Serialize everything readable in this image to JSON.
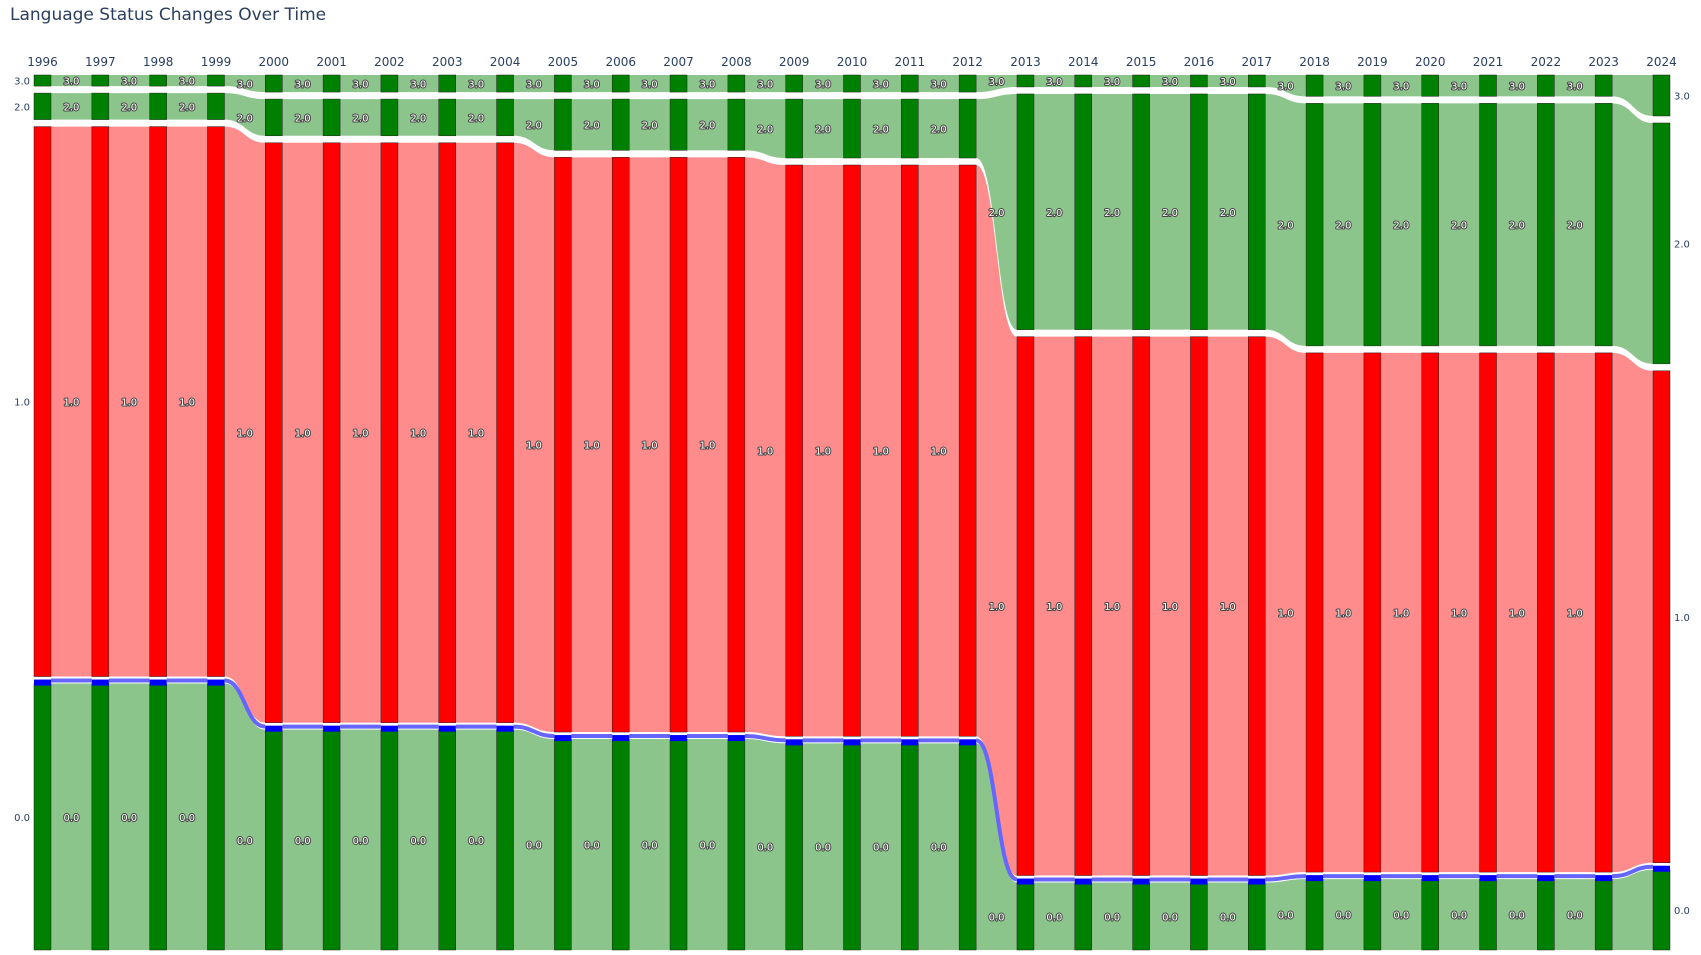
{
  "title": "Language Status Changes Over Time",
  "colors": {
    "status_0": "#008000",
    "status_1": "#ff0000",
    "status_2": "#008000",
    "status_3": "#008000",
    "unchanged_link_red": "#ff6666",
    "unchanged_link_green": "#66b266",
    "connector": "#6666ff",
    "cap": "#0000ff",
    "title": "#2a3f5f"
  },
  "chart_data": {
    "type": "sankey",
    "title": "Language Status Changes Over Time",
    "years": [
      "1996",
      "1997",
      "1998",
      "1999",
      "2000",
      "2001",
      "2002",
      "2003",
      "2004",
      "2005",
      "2006",
      "2007",
      "2008",
      "2009",
      "2010",
      "2011",
      "2012",
      "2013",
      "2014",
      "2015",
      "2016",
      "2017",
      "2018",
      "2019",
      "2020",
      "2021",
      "2022",
      "2023",
      "2024"
    ],
    "status_labels": [
      "3.0",
      "2.0",
      "1.0",
      "0.0"
    ],
    "status_share_percent": [
      {
        "year": "1996",
        "3.0": 1.3,
        "2.0": 3.1,
        "1.0": 64.4,
        "0.0": 31.2
      },
      {
        "year": "1997",
        "3.0": 1.3,
        "2.0": 3.1,
        "1.0": 64.4,
        "0.0": 31.2
      },
      {
        "year": "1998",
        "3.0": 1.3,
        "2.0": 3.1,
        "1.0": 64.4,
        "0.0": 31.2
      },
      {
        "year": "1999",
        "3.0": 1.3,
        "2.0": 3.1,
        "1.0": 64.4,
        "0.0": 31.2
      },
      {
        "year": "2000",
        "3.0": 2.0,
        "2.0": 4.3,
        "1.0": 67.9,
        "0.0": 25.8
      },
      {
        "year": "2001",
        "3.0": 2.0,
        "2.0": 4.3,
        "1.0": 67.9,
        "0.0": 25.8
      },
      {
        "year": "2002",
        "3.0": 2.0,
        "2.0": 4.3,
        "1.0": 67.9,
        "0.0": 25.8
      },
      {
        "year": "2003",
        "3.0": 2.0,
        "2.0": 4.3,
        "1.0": 67.9,
        "0.0": 25.8
      },
      {
        "year": "2004",
        "3.0": 2.0,
        "2.0": 4.3,
        "1.0": 67.9,
        "0.0": 25.8
      },
      {
        "year": "2005",
        "3.0": 2.0,
        "2.0": 6.0,
        "1.0": 67.3,
        "0.0": 24.7
      },
      {
        "year": "2006",
        "3.0": 2.0,
        "2.0": 6.0,
        "1.0": 67.3,
        "0.0": 24.7
      },
      {
        "year": "2007",
        "3.0": 2.0,
        "2.0": 6.0,
        "1.0": 67.3,
        "0.0": 24.7
      },
      {
        "year": "2008",
        "3.0": 2.0,
        "2.0": 6.0,
        "1.0": 67.3,
        "0.0": 24.7
      },
      {
        "year": "2009",
        "3.0": 2.0,
        "2.0": 6.9,
        "1.0": 66.9,
        "0.0": 24.2
      },
      {
        "year": "2010",
        "3.0": 2.0,
        "2.0": 6.9,
        "1.0": 66.9,
        "0.0": 24.2
      },
      {
        "year": "2011",
        "3.0": 2.0,
        "2.0": 6.9,
        "1.0": 66.9,
        "0.0": 24.2
      },
      {
        "year": "2012",
        "3.0": 2.0,
        "2.0": 6.9,
        "1.0": 66.9,
        "0.0": 24.2
      },
      {
        "year": "2013",
        "3.0": 1.4,
        "2.0": 27.6,
        "1.0": 63.1,
        "0.0": 7.9
      },
      {
        "year": "2014",
        "3.0": 1.4,
        "2.0": 27.6,
        "1.0": 63.1,
        "0.0": 7.9
      },
      {
        "year": "2015",
        "3.0": 1.4,
        "2.0": 27.6,
        "1.0": 63.1,
        "0.0": 7.9
      },
      {
        "year": "2016",
        "3.0": 1.4,
        "2.0": 27.6,
        "1.0": 63.1,
        "0.0": 7.9
      },
      {
        "year": "2017",
        "3.0": 1.4,
        "2.0": 27.6,
        "1.0": 63.1,
        "0.0": 7.9
      },
      {
        "year": "2018",
        "3.0": 2.5,
        "2.0": 28.4,
        "1.0": 60.8,
        "0.0": 8.3
      },
      {
        "year": "2019",
        "3.0": 2.5,
        "2.0": 28.4,
        "1.0": 60.8,
        "0.0": 8.3
      },
      {
        "year": "2020",
        "3.0": 2.5,
        "2.0": 28.4,
        "1.0": 60.8,
        "0.0": 8.3
      },
      {
        "year": "2021",
        "3.0": 2.5,
        "2.0": 28.4,
        "1.0": 60.8,
        "0.0": 8.3
      },
      {
        "year": "2022",
        "3.0": 2.5,
        "2.0": 28.4,
        "1.0": 60.8,
        "0.0": 8.3
      },
      {
        "year": "2023",
        "3.0": 2.5,
        "2.0": 28.4,
        "1.0": 60.8,
        "0.0": 8.3
      },
      {
        "year": "2024",
        "3.0": 4.8,
        "2.0": 28.2,
        "1.0": 57.6,
        "0.0": 9.4
      }
    ],
    "node_label_placement": "inside node, left side at first column, right side at last column",
    "legend": "none"
  }
}
